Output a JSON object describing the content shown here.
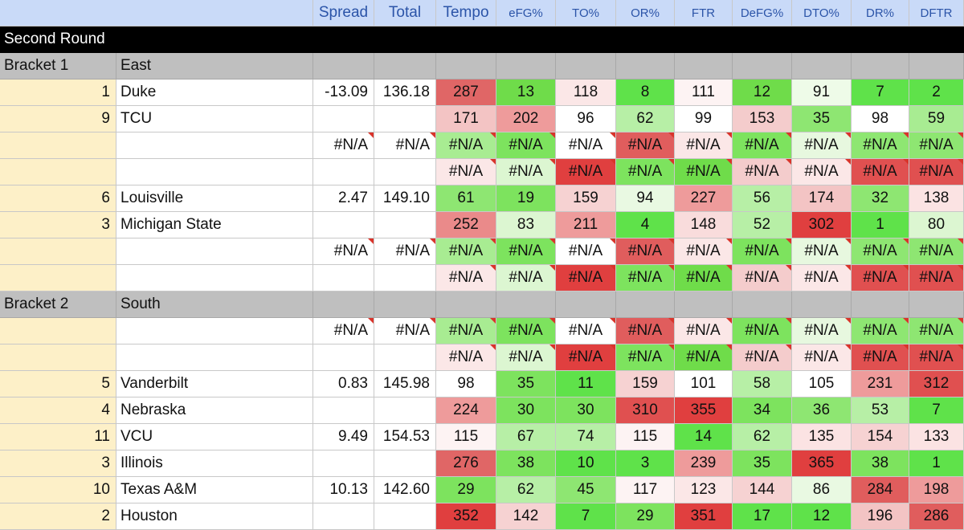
{
  "columns": {
    "headers": [
      "Spread",
      "Total",
      "Tempo",
      "eFG%",
      "TO%",
      "OR%",
      "FTR",
      "DeFG%",
      "DTO%",
      "DR%",
      "DFTR"
    ]
  },
  "round_title": "Second Round",
  "brackets": [
    {
      "label": "Bracket 1",
      "region": "East",
      "rows": [
        {
          "seed": "1",
          "team": "Duke",
          "spread": "-13.09",
          "total": "136.18",
          "stats": [
            "287",
            "13",
            "118",
            "8",
            "111",
            "12",
            "91",
            "7",
            "2"
          ],
          "colors": [
            "#e06666",
            "#6fdc4a",
            "#fbe7e7",
            "#5fe24a",
            "#fdf3f3",
            "#6fdc4a",
            "#eefbe8",
            "#5fe24a",
            "#5fe24a"
          ],
          "notes": [
            false,
            false,
            false,
            false,
            false,
            false,
            false,
            false,
            false
          ]
        },
        {
          "seed": "9",
          "team": "TCU",
          "spread": "",
          "total": "",
          "stats": [
            "171",
            "202",
            "96",
            "62",
            "99",
            "153",
            "35",
            "98",
            "59"
          ],
          "colors": [
            "#f3c4c4",
            "#ee9b9b",
            "#ffffff",
            "#b7efa6",
            "#ffffff",
            "#f4cccc",
            "#8ee672",
            "#ffffff",
            "#a8ec92"
          ],
          "notes": [
            false,
            false,
            false,
            false,
            false,
            false,
            false,
            false,
            false
          ]
        },
        {
          "seed": "",
          "team": "",
          "spread": "#N/A",
          "total": "#N/A",
          "stats": [
            "#N/A",
            "#N/A",
            "#N/A",
            "#N/A",
            "#N/A",
            "#N/A",
            "#N/A",
            "#N/A",
            "#N/A"
          ],
          "colors": [
            "#a8ec92",
            "#7de35e",
            "#ffffff",
            "#e05d5d",
            "#fbe7e7",
            "#7de35e",
            "#e7f8df",
            "#8ee672",
            "#8ee672"
          ],
          "notes": [
            true,
            true,
            true,
            true,
            true,
            true,
            true,
            true,
            true
          ],
          "spread_note": true,
          "total_note": true
        },
        {
          "seed": "",
          "team": "",
          "spread": "",
          "total": "",
          "stats": [
            "#N/A",
            "#N/A",
            "#N/A",
            "#N/A",
            "#N/A",
            "#N/A",
            "#N/A",
            "#N/A",
            "#N/A"
          ],
          "colors": [
            "#fbe7e7",
            "#dcf6d1",
            "#e03f3f",
            "#7de35e",
            "#6fdc4a",
            "#f4cccc",
            "#fbe7e7",
            "#e05050",
            "#e05050"
          ],
          "notes": [
            true,
            true,
            true,
            true,
            true,
            true,
            true,
            true,
            true
          ]
        },
        {
          "seed": "6",
          "team": "Louisville",
          "spread": "2.47",
          "total": "149.10",
          "stats": [
            "61",
            "19",
            "159",
            "94",
            "227",
            "56",
            "174",
            "32",
            "138"
          ],
          "colors": [
            "#8ee672",
            "#7de35e",
            "#f6d2d2",
            "#e9f9e2",
            "#ee9b9b",
            "#b7efa6",
            "#f3c4c4",
            "#8ee672",
            "#fbe3e3"
          ],
          "notes": [
            false,
            false,
            false,
            false,
            false,
            false,
            false,
            false,
            false
          ]
        },
        {
          "seed": "3",
          "team": "Michigan State",
          "spread": "",
          "total": "",
          "stats": [
            "252",
            "83",
            "211",
            "4",
            "148",
            "52",
            "302",
            "1",
            "80"
          ],
          "colors": [
            "#ea8a8a",
            "#dcf6d1",
            "#ee9b9b",
            "#5fe24a",
            "#f9dcdc",
            "#b7efa6",
            "#e03f3f",
            "#5fe24a",
            "#dcf6d1"
          ],
          "notes": [
            false,
            false,
            false,
            false,
            false,
            false,
            false,
            false,
            false
          ]
        },
        {
          "seed": "",
          "team": "",
          "spread": "#N/A",
          "total": "#N/A",
          "stats": [
            "#N/A",
            "#N/A",
            "#N/A",
            "#N/A",
            "#N/A",
            "#N/A",
            "#N/A",
            "#N/A",
            "#N/A"
          ],
          "colors": [
            "#a8ec92",
            "#7de35e",
            "#ffffff",
            "#e05d5d",
            "#fbe7e7",
            "#7de35e",
            "#e7f8df",
            "#8ee672",
            "#8ee672"
          ],
          "notes": [
            true,
            true,
            true,
            true,
            true,
            true,
            true,
            true,
            true
          ],
          "spread_note": true,
          "total_note": true
        },
        {
          "seed": "",
          "team": "",
          "spread": "",
          "total": "",
          "stats": [
            "#N/A",
            "#N/A",
            "#N/A",
            "#N/A",
            "#N/A",
            "#N/A",
            "#N/A",
            "#N/A",
            "#N/A"
          ],
          "colors": [
            "#fbe7e7",
            "#dcf6d1",
            "#e03f3f",
            "#7de35e",
            "#6fdc4a",
            "#f4cccc",
            "#fbe7e7",
            "#e05050",
            "#e05050"
          ],
          "notes": [
            true,
            true,
            true,
            true,
            true,
            true,
            true,
            true,
            true
          ]
        }
      ]
    },
    {
      "label": "Bracket 2",
      "region": "South",
      "rows": [
        {
          "seed": "",
          "team": "",
          "spread": "#N/A",
          "total": "#N/A",
          "stats": [
            "#N/A",
            "#N/A",
            "#N/A",
            "#N/A",
            "#N/A",
            "#N/A",
            "#N/A",
            "#N/A",
            "#N/A"
          ],
          "colors": [
            "#a8ec92",
            "#7de35e",
            "#ffffff",
            "#e05d5d",
            "#fbe7e7",
            "#7de35e",
            "#e7f8df",
            "#8ee672",
            "#8ee672"
          ],
          "notes": [
            true,
            true,
            true,
            true,
            true,
            true,
            true,
            true,
            true
          ],
          "spread_note": true,
          "total_note": true
        },
        {
          "seed": "",
          "team": "",
          "spread": "",
          "total": "",
          "stats": [
            "#N/A",
            "#N/A",
            "#N/A",
            "#N/A",
            "#N/A",
            "#N/A",
            "#N/A",
            "#N/A",
            "#N/A"
          ],
          "colors": [
            "#fbe7e7",
            "#dcf6d1",
            "#e03f3f",
            "#7de35e",
            "#6fdc4a",
            "#f4cccc",
            "#fbe7e7",
            "#e05050",
            "#e05050"
          ],
          "notes": [
            true,
            true,
            true,
            true,
            true,
            true,
            true,
            true,
            true
          ]
        },
        {
          "seed": "5",
          "team": "Vanderbilt",
          "spread": "0.83",
          "total": "145.98",
          "stats": [
            "98",
            "35",
            "11",
            "159",
            "101",
            "58",
            "105",
            "231",
            "312"
          ],
          "colors": [
            "#ffffff",
            "#7de35e",
            "#5fe24a",
            "#f6d2d2",
            "#ffffff",
            "#b7efa6",
            "#ffffff",
            "#ee9b9b",
            "#e05050"
          ],
          "notes": [
            false,
            false,
            false,
            false,
            false,
            false,
            false,
            false,
            false
          ]
        },
        {
          "seed": "4",
          "team": "Nebraska",
          "spread": "",
          "total": "",
          "stats": [
            "224",
            "30",
            "30",
            "310",
            "355",
            "34",
            "36",
            "53",
            "7"
          ],
          "colors": [
            "#ee9b9b",
            "#7de35e",
            "#7de35e",
            "#e05050",
            "#e03f3f",
            "#7de35e",
            "#8ee672",
            "#b7efa6",
            "#5fe24a"
          ],
          "notes": [
            false,
            false,
            false,
            false,
            false,
            false,
            false,
            false,
            false
          ]
        },
        {
          "seed": "11",
          "team": "VCU",
          "spread": "9.49",
          "total": "154.53",
          "stats": [
            "115",
            "67",
            "74",
            "115",
            "14",
            "62",
            "135",
            "154",
            "133"
          ],
          "colors": [
            "#fdf3f3",
            "#b7efa6",
            "#b7efa6",
            "#fdf3f3",
            "#5fe24a",
            "#b7efa6",
            "#fbe3e3",
            "#f6d2d2",
            "#fbe3e3"
          ],
          "notes": [
            false,
            false,
            false,
            false,
            false,
            false,
            false,
            false,
            false
          ]
        },
        {
          "seed": "3",
          "team": "Illinois",
          "spread": "",
          "total": "",
          "stats": [
            "276",
            "38",
            "10",
            "3",
            "239",
            "35",
            "365",
            "38",
            "1"
          ],
          "colors": [
            "#e06666",
            "#7de35e",
            "#5fe24a",
            "#5fe24a",
            "#ee9b9b",
            "#7de35e",
            "#e03f3f",
            "#7de35e",
            "#5fe24a"
          ],
          "notes": [
            false,
            false,
            false,
            false,
            false,
            false,
            false,
            false,
            false
          ]
        },
        {
          "seed": "10",
          "team": "Texas A&M",
          "spread": "10.13",
          "total": "142.60",
          "stats": [
            "29",
            "62",
            "45",
            "117",
            "123",
            "144",
            "86",
            "284",
            "198"
          ],
          "colors": [
            "#7de35e",
            "#b7efa6",
            "#8ee672",
            "#fdf3f3",
            "#fbe7e7",
            "#f6d2d2",
            "#e9f9e2",
            "#e05d5d",
            "#ee9b9b"
          ],
          "notes": [
            false,
            false,
            false,
            false,
            false,
            false,
            false,
            false,
            false
          ]
        },
        {
          "seed": "2",
          "team": "Houston",
          "spread": "",
          "total": "",
          "stats": [
            "352",
            "142",
            "7",
            "29",
            "351",
            "17",
            "12",
            "196",
            "286"
          ],
          "colors": [
            "#e03f3f",
            "#f6d2d2",
            "#5fe24a",
            "#7de35e",
            "#e03f3f",
            "#5fe24a",
            "#5fe24a",
            "#f3c4c4",
            "#e05d5d"
          ],
          "notes": [
            false,
            false,
            false,
            false,
            false,
            false,
            false,
            false,
            false
          ]
        }
      ]
    }
  ]
}
